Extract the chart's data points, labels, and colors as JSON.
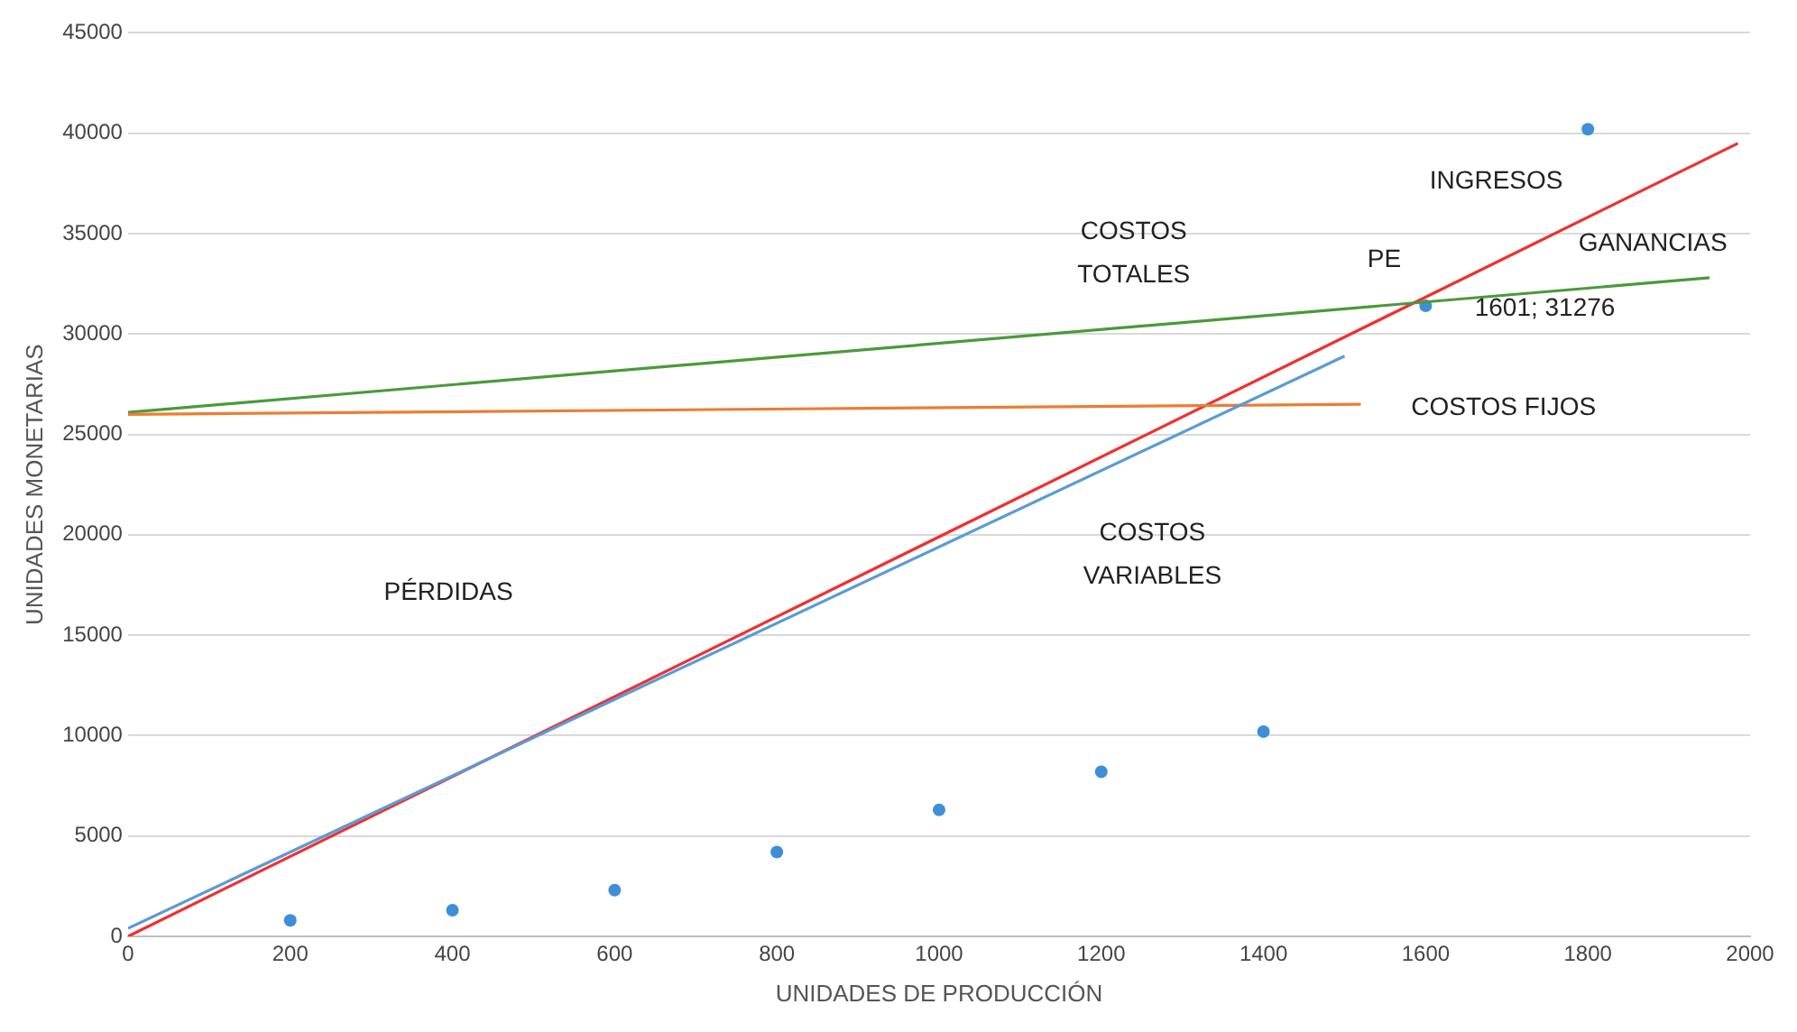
{
  "chart_data": {
    "type": "line",
    "xlabel": "UNIDADES DE PRODUCCIÓN",
    "ylabel": "UNIDADES MONETARIAS",
    "xlim": [
      0,
      2000
    ],
    "xticks": [
      0,
      200,
      400,
      600,
      800,
      1000,
      1200,
      1400,
      1600,
      1800,
      2000
    ],
    "ylim": [
      0,
      45000
    ],
    "yticks": [
      0,
      5000,
      10000,
      15000,
      20000,
      25000,
      30000,
      35000,
      40000,
      45000
    ],
    "grid": "y",
    "legend": false,
    "line_style": "solid",
    "series": [
      {
        "color": "#5b9bd5",
        "x": [
          0,
          1500
        ],
        "values": [
          400,
          28900
        ]
      },
      {
        "color": "#ed7d31",
        "x": [
          0,
          1520
        ],
        "values": [
          26000,
          26500
        ]
      },
      {
        "color": "#4a9a3a",
        "x": [
          0,
          1950
        ],
        "values": [
          26100,
          32800
        ]
      },
      {
        "color": "#f03030",
        "x": [
          0,
          1985
        ],
        "values": [
          0,
          39500
        ]
      },
      {
        "type": "scatter",
        "color": "#3f8fd8",
        "x": [
          200,
          400,
          600,
          800,
          1000,
          1200,
          1400,
          1600,
          1800
        ],
        "values": [
          800,
          1300,
          2300,
          4200,
          6300,
          8200,
          10200,
          31400,
          40200
        ]
      }
    ],
    "annotations": [
      "INGRESOS",
      "GANANCIAS",
      "COSTOS\nTOTALES",
      "PE",
      "1601; 31276",
      "COSTOS FIJOS",
      "COSTOS\nVARIABLES",
      "PÉRDIDAS"
    ]
  }
}
